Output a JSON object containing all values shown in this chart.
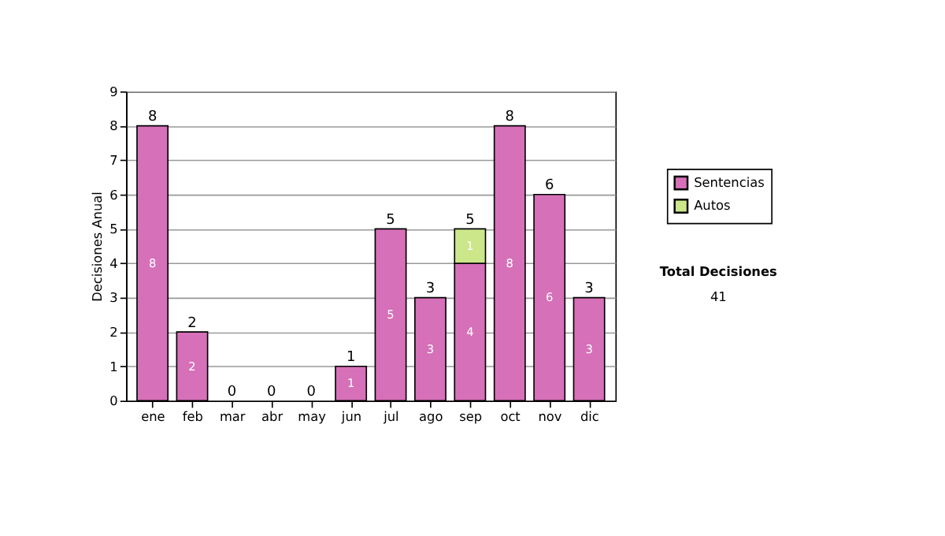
{
  "chart_data": {
    "type": "bar",
    "stacked": true,
    "ylabel": "Decisiones Anual",
    "categories": [
      "ene",
      "feb",
      "mar",
      "abr",
      "may",
      "jun",
      "jul",
      "ago",
      "sep",
      "oct",
      "nov",
      "dic"
    ],
    "series": [
      {
        "name": "Sentencias",
        "color": "#d670b8",
        "values": [
          8,
          2,
          0,
          0,
          0,
          1,
          5,
          3,
          4,
          8,
          6,
          3
        ],
        "value_labels": [
          "8",
          "2",
          null,
          null,
          null,
          "1",
          "5",
          "3",
          "4",
          "8",
          "6",
          "3"
        ]
      },
      {
        "name": "Autos",
        "color": "#cce68a",
        "values": [
          0,
          0,
          0,
          0,
          0,
          0,
          0,
          0,
          1,
          0,
          0,
          0
        ],
        "value_labels": [
          null,
          null,
          null,
          null,
          null,
          null,
          null,
          null,
          "1",
          null,
          null,
          null
        ]
      }
    ],
    "totals": [
      "8",
      "2",
      "0",
      "0",
      "0",
      "1",
      "5",
      "3",
      "5",
      "8",
      "6",
      "3"
    ],
    "ylim": [
      0,
      9
    ],
    "yticks": [
      0,
      1,
      2,
      3,
      4,
      5,
      6,
      7,
      8,
      9
    ],
    "grid": "y",
    "legend": "right",
    "annotations": [
      "Total Decisiones",
      "41"
    ]
  }
}
